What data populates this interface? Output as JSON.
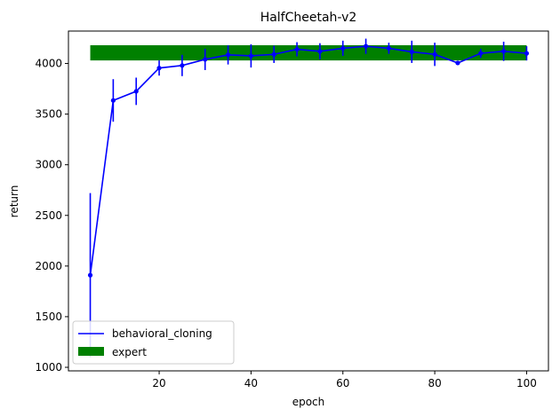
{
  "chart_data": {
    "type": "line",
    "title": "HalfCheetah-v2",
    "xlabel": "epoch",
    "ylabel": "return",
    "xlim": [
      0.25,
      104.75
    ],
    "ylim": [
      965,
      4320
    ],
    "xticks": [
      20,
      40,
      60,
      80,
      100
    ],
    "yticks": [
      1000,
      1500,
      2000,
      2500,
      3000,
      3500,
      4000
    ],
    "grid": false,
    "legend_position": "lower-left",
    "series": [
      {
        "name": "behavioral_cloning",
        "color": "#0000ff",
        "x": [
          5,
          10,
          15,
          20,
          25,
          30,
          35,
          40,
          45,
          50,
          55,
          60,
          65,
          70,
          75,
          80,
          85,
          90,
          95,
          100
        ],
        "y": [
          1910,
          3635,
          3725,
          3955,
          3980,
          4040,
          4085,
          4075,
          4090,
          4140,
          4120,
          4150,
          4170,
          4150,
          4115,
          4090,
          4005,
          4100,
          4120,
          4100
        ],
        "yerr": [
          810,
          210,
          135,
          75,
          105,
          105,
          95,
          115,
          85,
          70,
          80,
          75,
          75,
          55,
          110,
          115,
          10,
          45,
          95,
          70
        ]
      }
    ],
    "bands": [
      {
        "name": "expert",
        "color": "#008000",
        "x": [
          5,
          100
        ],
        "y_low": 4030,
        "y_high": 4180
      }
    ]
  }
}
